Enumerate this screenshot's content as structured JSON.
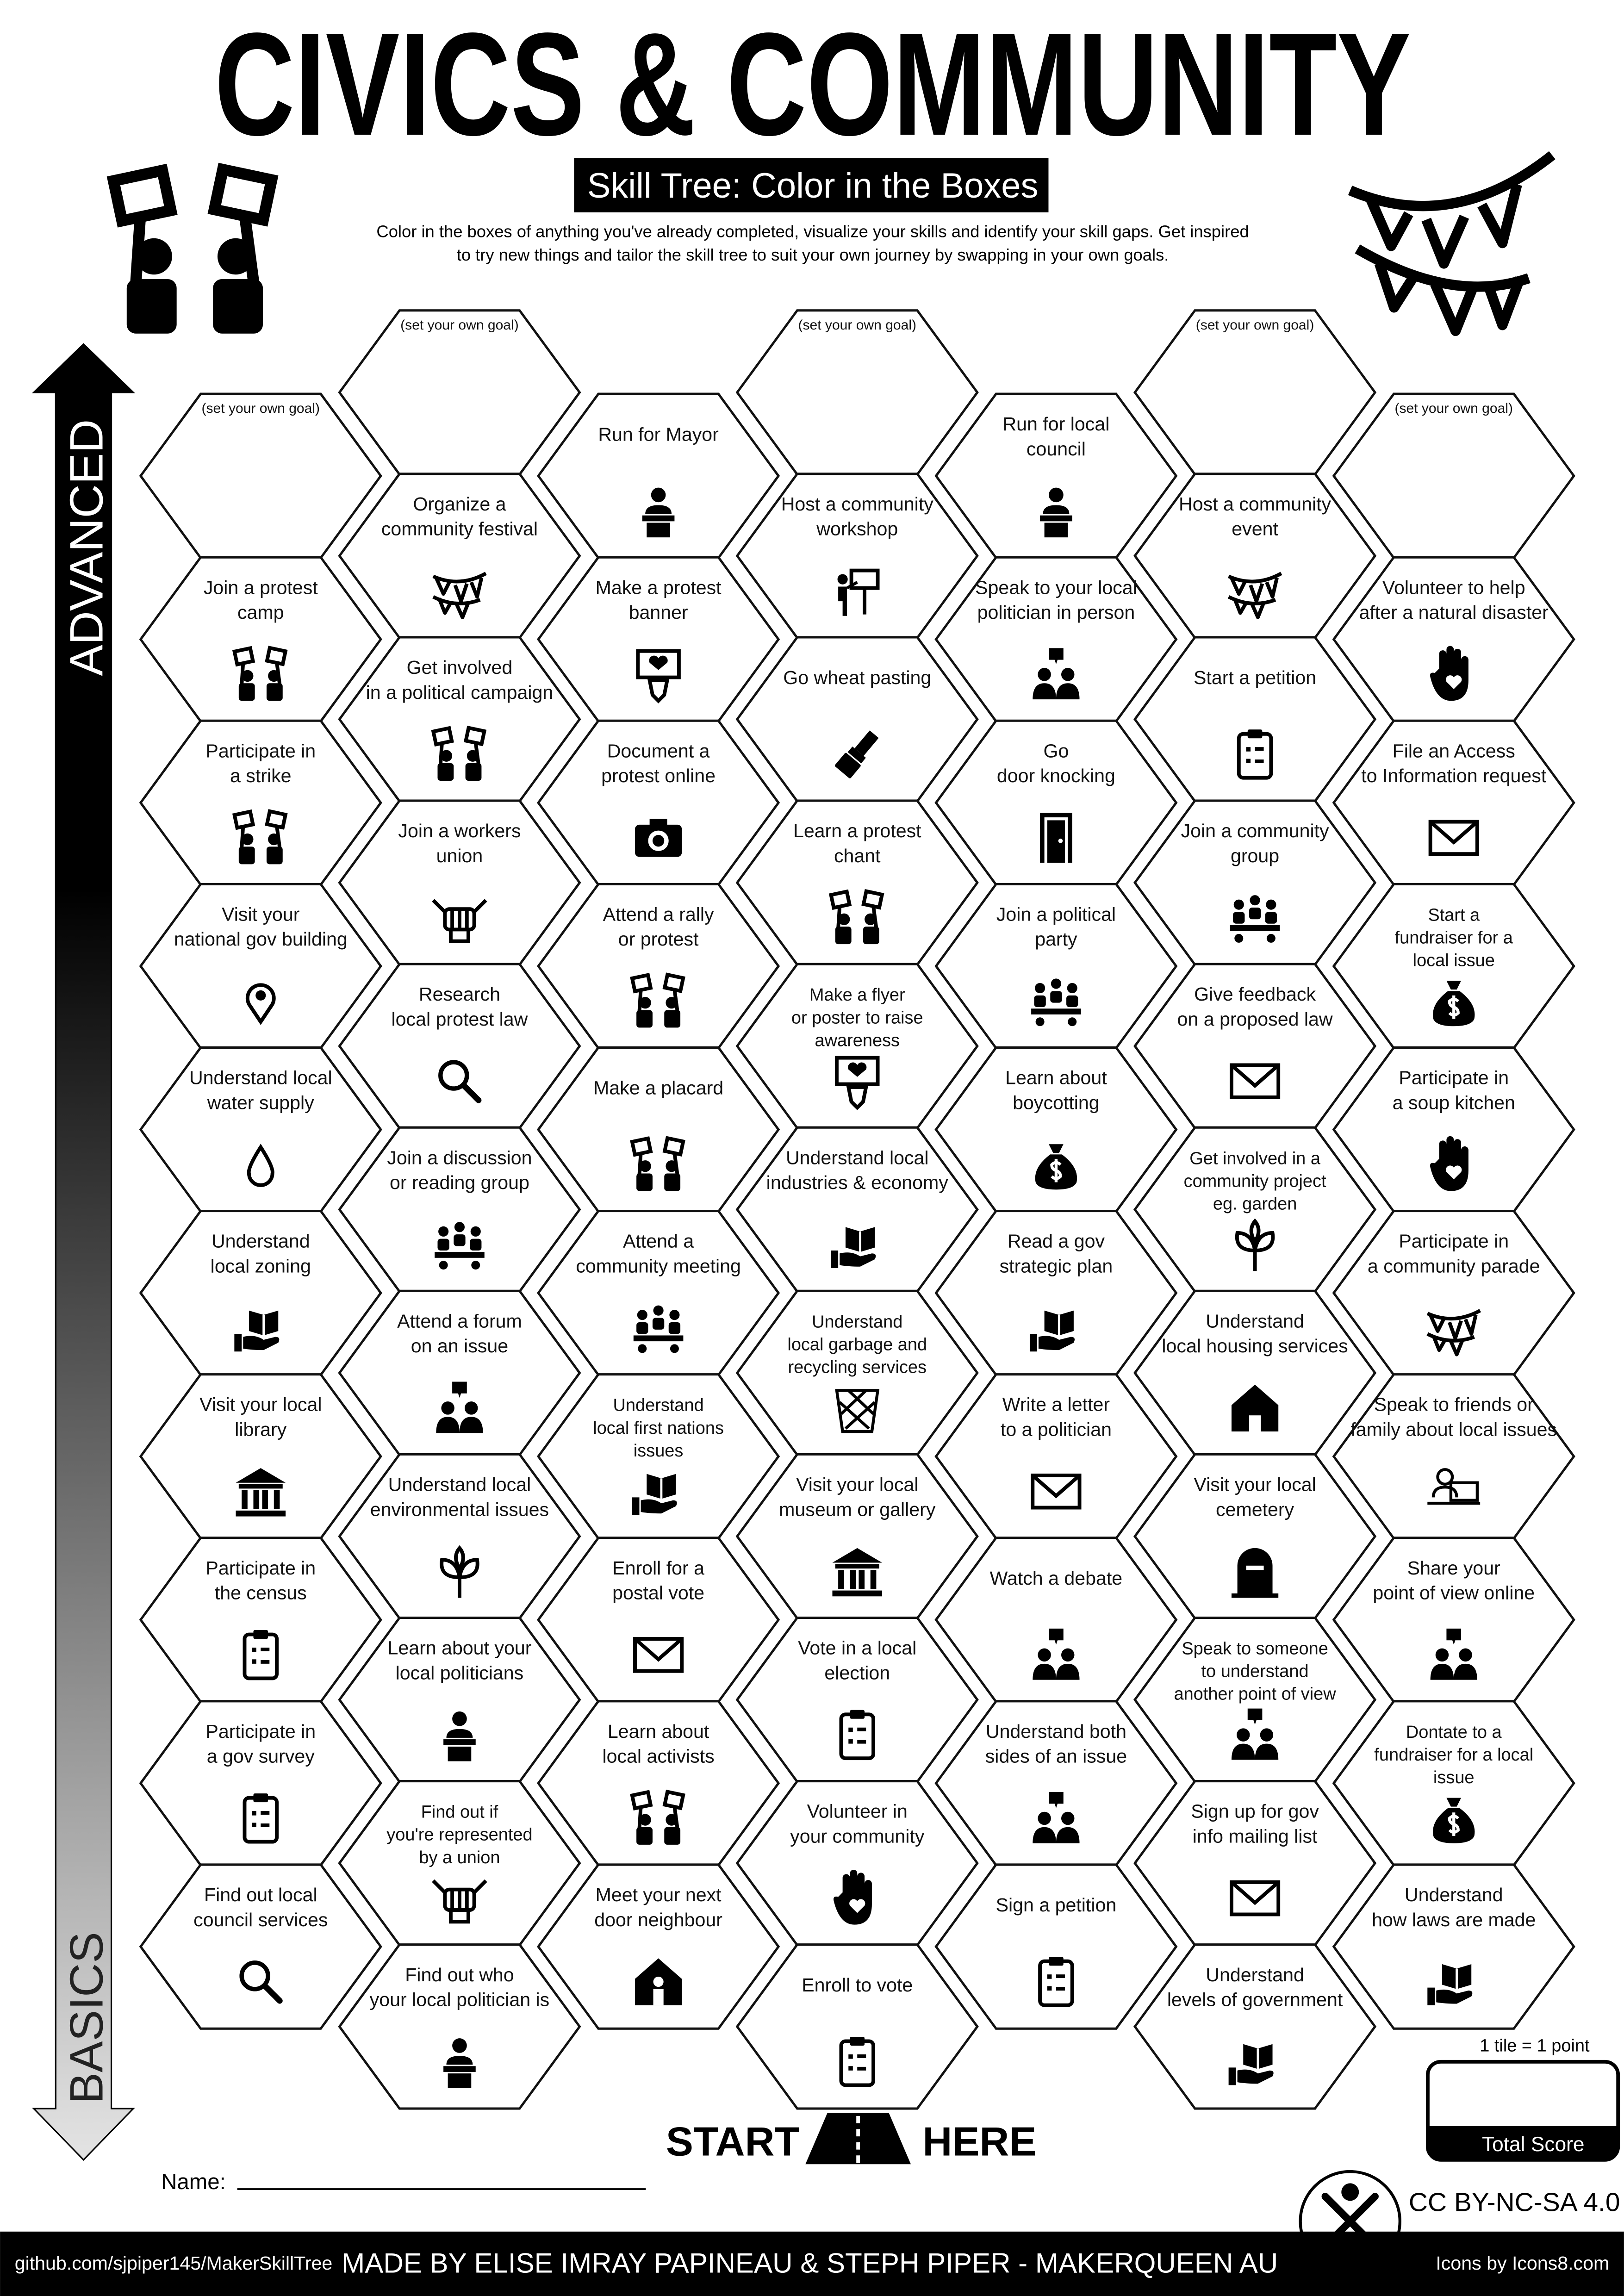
{
  "header": {
    "title": "CIVICS & COMMUNITY",
    "subtitle": "Skill Tree: Color in the Boxes",
    "description": [
      "Color in the boxes of anything you've already completed, visualize your skills and identify your skill gaps.  Get inspired",
      "to try new things and tailor the skill tree to suit your own journey by swapping in your own goals."
    ]
  },
  "axis": {
    "top": "ADVANCED",
    "bottom": "BASICS"
  },
  "columns": [
    [
      {
        "note": "(set your own goal)"
      },
      {
        "label": [
          "Join a protest",
          "camp"
        ]
      },
      {
        "label": [
          "Participate in",
          "a strike"
        ]
      },
      {
        "label": [
          "Visit your",
          "national gov building"
        ]
      },
      {
        "label": [
          "Understand local",
          "water supply"
        ]
      },
      {
        "label": [
          "Understand",
          "local zoning"
        ]
      },
      {
        "label": [
          "Visit your local",
          "library"
        ]
      },
      {
        "label": [
          "Participate in",
          "the census"
        ]
      },
      {
        "label": [
          "Participate in",
          "a gov survey"
        ]
      },
      {
        "label": [
          "Find out local",
          "council services"
        ]
      }
    ],
    [
      {
        "note": "(set your own goal)"
      },
      {
        "label": [
          "Organize a",
          "community festival"
        ]
      },
      {
        "label": [
          "Get involved",
          "in a political campaign"
        ]
      },
      {
        "label": [
          "Join a workers",
          "union"
        ]
      },
      {
        "label": [
          "Research",
          "local protest law"
        ]
      },
      {
        "label": [
          "Join a discussion",
          "or reading group"
        ]
      },
      {
        "label": [
          "Attend a forum",
          "on an issue"
        ]
      },
      {
        "label": [
          "Understand local",
          "environmental issues"
        ]
      },
      {
        "label": [
          "Learn about your",
          "local politicians"
        ]
      },
      {
        "label": [
          "Find out if",
          "you're represented",
          "by a union"
        ]
      },
      {
        "label": [
          "Find out who",
          "your local politician is"
        ]
      }
    ],
    [
      {
        "label": [
          "Run for Mayor"
        ]
      },
      {
        "label": [
          "Make a protest",
          "banner"
        ]
      },
      {
        "label": [
          "Document a",
          "protest online"
        ]
      },
      {
        "label": [
          "Attend a rally",
          "or protest"
        ]
      },
      {
        "label": [
          "Make a placard"
        ]
      },
      {
        "label": [
          "Attend a",
          "community meeting"
        ]
      },
      {
        "label": [
          "Understand",
          "local first nations",
          "issues"
        ]
      },
      {
        "label": [
          "Enroll for a",
          "postal vote"
        ]
      },
      {
        "label": [
          "Learn about",
          "local activists"
        ]
      },
      {
        "label": [
          "Meet your next",
          "door neighbour"
        ]
      }
    ],
    [
      {
        "note": "(set your own goal)"
      },
      {
        "label": [
          "Host a community",
          "workshop"
        ]
      },
      {
        "label": [
          "Go wheat pasting"
        ]
      },
      {
        "label": [
          "Learn a protest",
          "chant"
        ]
      },
      {
        "label": [
          "Make a flyer",
          "or poster to raise",
          "awareness"
        ]
      },
      {
        "label": [
          "Understand local",
          "industries & economy"
        ]
      },
      {
        "label": [
          "Understand",
          "local garbage and",
          "recycling services"
        ]
      },
      {
        "label": [
          "Visit your local",
          "museum or gallery"
        ]
      },
      {
        "label": [
          "Vote in a local",
          "election"
        ]
      },
      {
        "label": [
          "Volunteer in",
          "your community"
        ]
      },
      {
        "label": [
          "Enroll to vote"
        ]
      }
    ],
    [
      {
        "label": [
          "Run for local",
          "council"
        ]
      },
      {
        "label": [
          "Speak to your local",
          "politician in person"
        ]
      },
      {
        "label": [
          "Go",
          "door knocking"
        ]
      },
      {
        "label": [
          "Join a political",
          "party"
        ]
      },
      {
        "label": [
          "Learn about",
          "boycotting"
        ]
      },
      {
        "label": [
          "Read a gov",
          "strategic plan"
        ]
      },
      {
        "label": [
          "Write a letter",
          "to a politician"
        ]
      },
      {
        "label": [
          "Watch a debate"
        ]
      },
      {
        "label": [
          "Understand both",
          "sides of an issue"
        ]
      },
      {
        "label": [
          "Sign a petition"
        ]
      }
    ],
    [
      {
        "note": "(set your own goal)"
      },
      {
        "label": [
          "Host a community",
          "event"
        ]
      },
      {
        "label": [
          "Start a petition"
        ]
      },
      {
        "label": [
          "Join a community",
          "group"
        ]
      },
      {
        "label": [
          "Give feedback",
          "on a proposed law"
        ]
      },
      {
        "label": [
          "Get involved in a",
          "community project",
          "eg. garden"
        ]
      },
      {
        "label": [
          "Understand",
          "local housing services"
        ]
      },
      {
        "label": [
          "Visit your local",
          "cemetery"
        ]
      },
      {
        "label": [
          "Speak to someone",
          "to understand",
          "another point of view"
        ]
      },
      {
        "label": [
          "Sign up for gov",
          "info mailing list"
        ]
      },
      {
        "label": [
          "Understand",
          "levels of government"
        ]
      }
    ],
    [
      {
        "note": "(set your own goal)"
      },
      {
        "label": [
          "Volunteer to help",
          "after a natural disaster"
        ]
      },
      {
        "label": [
          "File an Access",
          "to Information request"
        ]
      },
      {
        "label": [
          "Start a",
          "fundraiser for a",
          "local issue"
        ]
      },
      {
        "label": [
          "Participate in",
          "a soup kitchen"
        ]
      },
      {
        "label": [
          "Participate in",
          "a community parade"
        ]
      },
      {
        "label": [
          "Speak to friends or",
          "family about local issues"
        ]
      },
      {
        "label": [
          "Share your",
          "point of view online"
        ]
      },
      {
        "label": [
          "Dontate to a",
          "fundraiser for a local",
          "issue"
        ]
      },
      {
        "label": [
          "Understand",
          "how laws are made"
        ]
      }
    ]
  ],
  "start": {
    "left": "START",
    "right": "HERE"
  },
  "name_label": "Name:",
  "score": {
    "rule": "1 tile = 1 point",
    "label": "Total Score"
  },
  "license": "CC BY-NC-SA 4.0",
  "footer": {
    "left": "github.com/sjpiper145/MakerSkillTree",
    "center": "MADE BY ELISE IMRAY PAPINEAU & STEPH PIPER  -  MAKERQUEEN AU",
    "right": "Icons by Icons8.com"
  }
}
